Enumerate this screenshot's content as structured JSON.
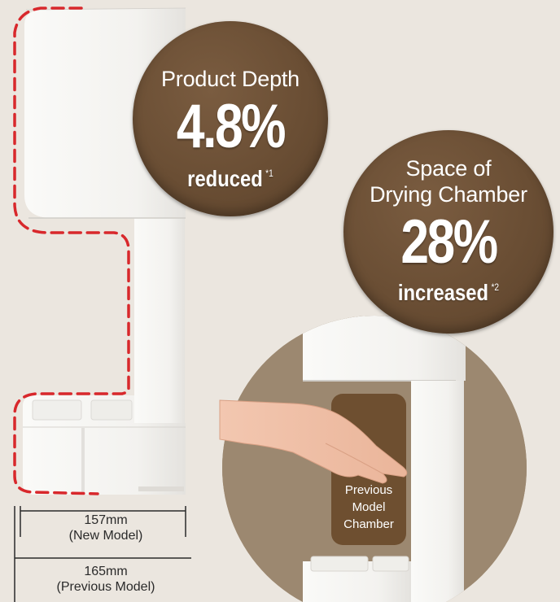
{
  "badge_depth": {
    "title": "Product Depth",
    "value": "4.8%",
    "label": "reduced",
    "note": "*1"
  },
  "badge_space": {
    "title_line1": "Space of",
    "title_line2": "Drying Chamber",
    "value": "28%",
    "label": "increased",
    "note": "*2"
  },
  "chamber_label": {
    "line1": "Previous",
    "line2": "Model",
    "line3": "Chamber"
  },
  "dimensions": {
    "new_model": {
      "size": "157mm",
      "label": "(New Model)"
    },
    "previous_model": {
      "size": "165mm",
      "label": "(Previous Model)"
    }
  },
  "colors": {
    "background": "#ebe6df",
    "badge_brown": "#6a4e34",
    "outline_red": "#d8282c",
    "chamber_brown": "#6e4f30"
  }
}
